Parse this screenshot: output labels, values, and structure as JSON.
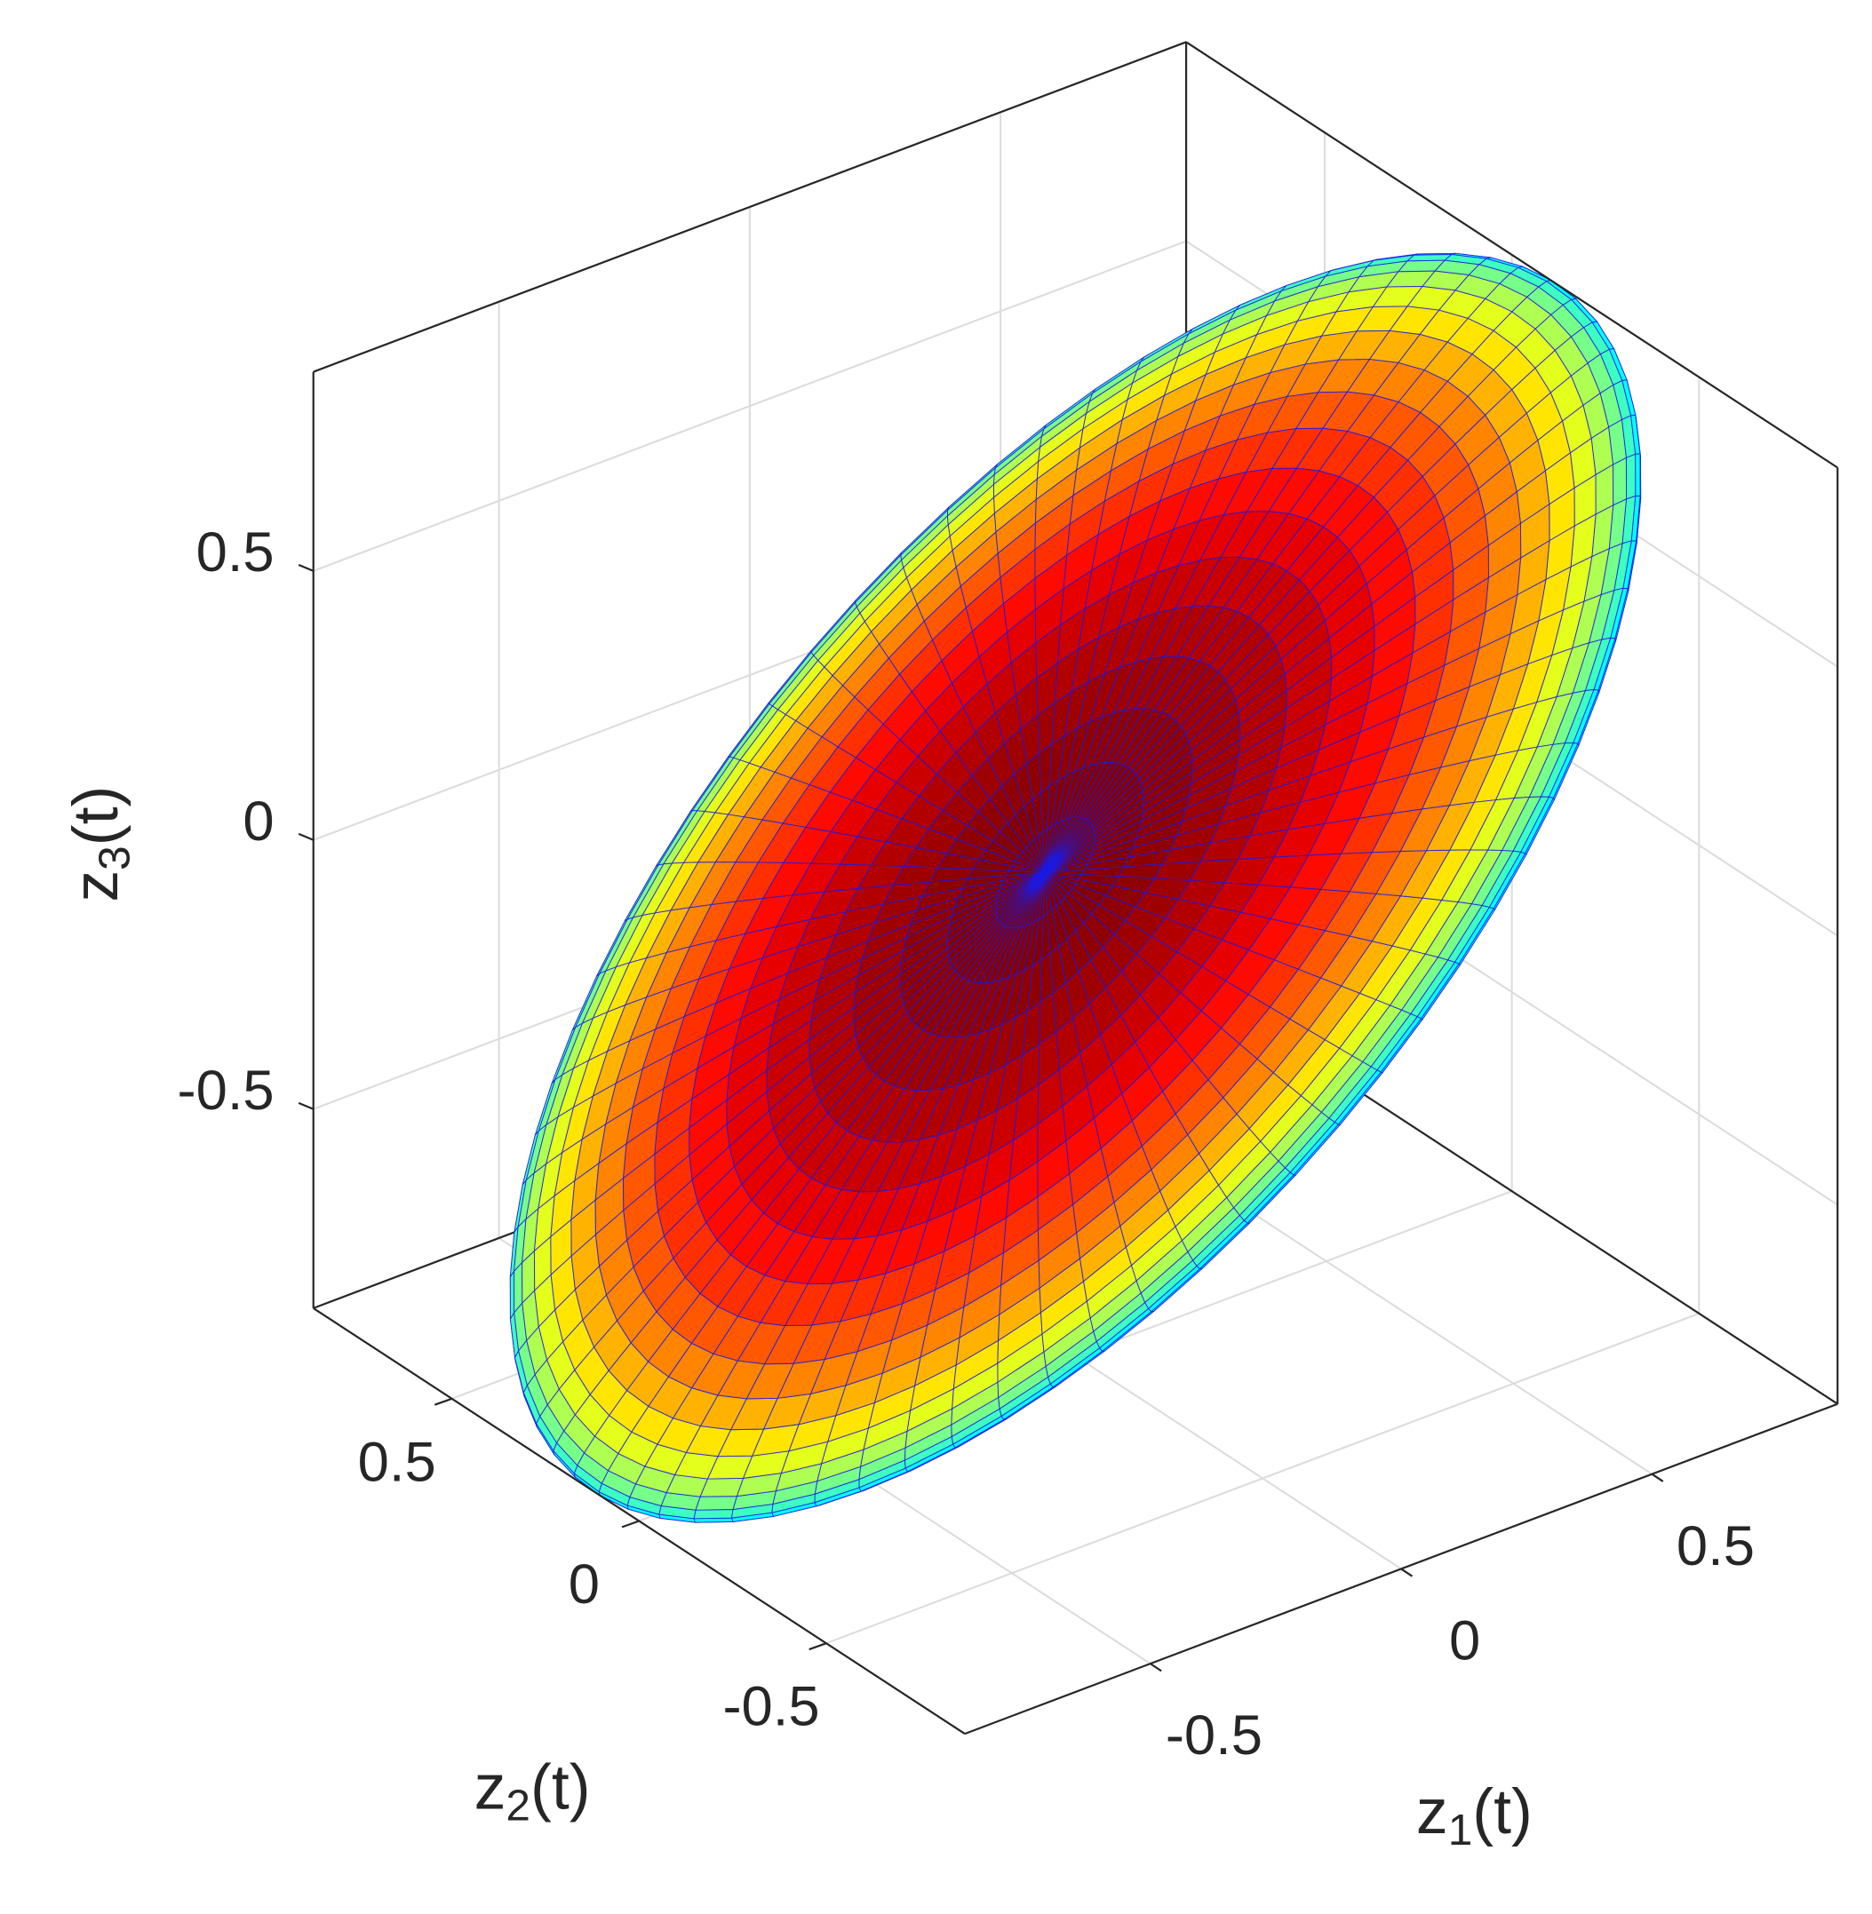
{
  "chart_data": {
    "type": "surface3d",
    "xlabel": {
      "base": "z",
      "sub": "1",
      "suffix": "(t)"
    },
    "ylabel": {
      "base": "z",
      "sub": "2",
      "suffix": "(t)"
    },
    "zlabel": {
      "base": "z",
      "sub": "3",
      "suffix": "(t)"
    },
    "xlim": [
      -0.87,
      0.87
    ],
    "xticks": [
      -0.5,
      0,
      0.5
    ],
    "ylim": [
      -0.87,
      0.87
    ],
    "yticks": [
      -0.5,
      0,
      0.5
    ],
    "zlim": [
      -0.87,
      0.87
    ],
    "zticks": [
      -0.5,
      0,
      0.5
    ],
    "grid": true,
    "box": true,
    "colormap": "jet",
    "edge_color": "#1a1ae6",
    "surface": {
      "shape": "ellipsoid",
      "center": [
        0,
        0,
        0
      ],
      "radii": [
        1.24,
        0.61,
        0.15
      ],
      "axes": [
        [
          0.7,
          -0.14,
          0.7
        ],
        [
          0.18,
          -0.91,
          -0.37
        ],
        [
          0.69,
          0.385,
          -0.61
        ]
      ]
    }
  }
}
